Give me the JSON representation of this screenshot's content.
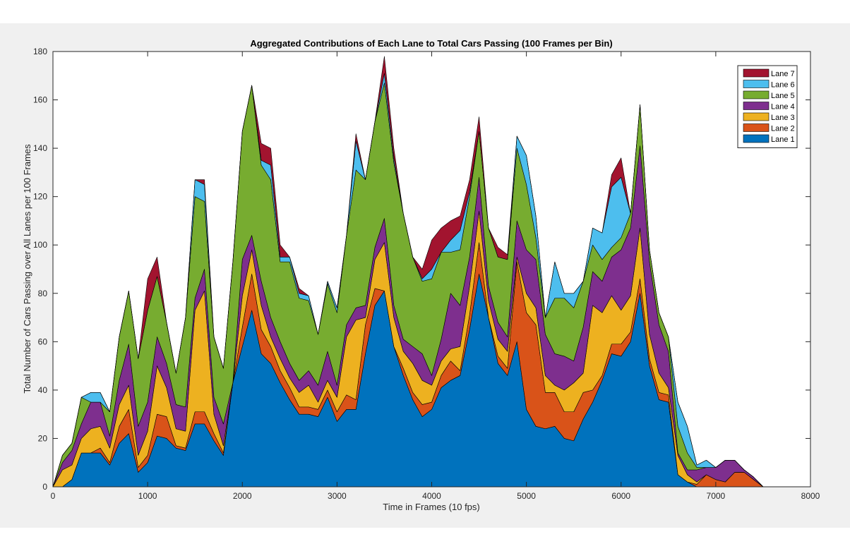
{
  "chart_data": {
    "type": "area",
    "title": "Aggregated Contributions of Each Lane to Total Cars Passing (100 Frames per Bin)",
    "xlabel": "Time in Frames (10 fps)",
    "ylabel": "Total Number of Cars Passing over All Lanes per 100 Frames",
    "xlim": [
      0,
      8000
    ],
    "ylim": [
      0,
      180
    ],
    "xticks": [
      0,
      1000,
      2000,
      3000,
      4000,
      5000,
      6000,
      7000,
      8000
    ],
    "yticks": [
      0,
      20,
      40,
      60,
      80,
      100,
      120,
      140,
      160,
      180
    ],
    "grid": false,
    "legend_position": "top-right",
    "x": [
      0,
      100,
      200,
      300,
      400,
      500,
      600,
      700,
      800,
      900,
      1000,
      1100,
      1200,
      1300,
      1400,
      1500,
      1600,
      1700,
      1800,
      1900,
      2000,
      2100,
      2200,
      2300,
      2400,
      2500,
      2600,
      2700,
      2800,
      2900,
      3000,
      3100,
      3200,
      3300,
      3400,
      3500,
      3600,
      3700,
      3800,
      3900,
      4000,
      4100,
      4200,
      4300,
      4400,
      4500,
      4600,
      4700,
      4800,
      4900,
      5000,
      5100,
      5200,
      5300,
      5400,
      5500,
      5600,
      5700,
      5800,
      5900,
      6000,
      6100,
      6200,
      6300,
      6400,
      6500,
      6600,
      6700,
      6800,
      6900,
      7000,
      7100,
      7200,
      7300,
      7400,
      7500,
      7600,
      7700,
      7800,
      7900,
      8000
    ],
    "series": [
      {
        "name": "Lane 1",
        "color": "#0072BD",
        "values": [
          0,
          0,
          3,
          14,
          14,
          14,
          9,
          18,
          22,
          6,
          10,
          21,
          20,
          16,
          15,
          26,
          26,
          19,
          13,
          43,
          58,
          73,
          55,
          51,
          43,
          36,
          30,
          30,
          29,
          37,
          27,
          32,
          32,
          55,
          75,
          81,
          58,
          46,
          36,
          29,
          32,
          41,
          44,
          46,
          65,
          88,
          70,
          51,
          46,
          60,
          32,
          25,
          24,
          25,
          20,
          19,
          28,
          35,
          44,
          55,
          54,
          60,
          80,
          50,
          36,
          35,
          5,
          2,
          0,
          0,
          0,
          0,
          0,
          0,
          0,
          0,
          0,
          0,
          0,
          0,
          0
        ]
      },
      {
        "name": "Lane 2",
        "color": "#D95319",
        "values": [
          0,
          0,
          0,
          0,
          0,
          2,
          1,
          7,
          10,
          2,
          3,
          9,
          9,
          1,
          1,
          5,
          5,
          3,
          1,
          0,
          8,
          15,
          10,
          7,
          5,
          5,
          3,
          3,
          3,
          3,
          4,
          6,
          4,
          12,
          7,
          0,
          0,
          3,
          3,
          5,
          3,
          5,
          8,
          2,
          6,
          13,
          0,
          3,
          3,
          33,
          40,
          42,
          15,
          14,
          11,
          12,
          11,
          5,
          2,
          4,
          5,
          4,
          6,
          3,
          3,
          3,
          0,
          0,
          1,
          5,
          3,
          2,
          6,
          6,
          3,
          0,
          0,
          0,
          0,
          0,
          0
        ]
      },
      {
        "name": "Lane 3",
        "color": "#EDB120",
        "values": [
          0,
          7,
          6,
          6,
          10,
          9,
          6,
          9,
          10,
          5,
          10,
          20,
          12,
          7,
          7,
          42,
          50,
          8,
          3,
          0,
          13,
          10,
          10,
          4,
          5,
          4,
          6,
          9,
          3,
          4,
          6,
          24,
          33,
          3,
          12,
          20,
          12,
          7,
          12,
          10,
          7,
          6,
          5,
          10,
          12,
          13,
          7,
          7,
          7,
          2,
          8,
          7,
          7,
          3,
          9,
          12,
          8,
          35,
          26,
          20,
          14,
          15,
          21,
          10,
          8,
          3,
          8,
          3,
          1,
          0,
          0,
          0,
          0,
          0,
          0,
          0,
          0,
          0,
          0,
          0,
          0
        ]
      },
      {
        "name": "Lane 4",
        "color": "#7E2F8E",
        "values": [
          0,
          3,
          6,
          6,
          11,
          10,
          5,
          10,
          17,
          12,
          12,
          12,
          10,
          10,
          10,
          5,
          9,
          7,
          9,
          0,
          15,
          6,
          10,
          8,
          7,
          6,
          5,
          6,
          7,
          12,
          5,
          5,
          5,
          5,
          5,
          10,
          5,
          5,
          7,
          11,
          4,
          9,
          23,
          17,
          12,
          14,
          6,
          7,
          6,
          15,
          18,
          20,
          17,
          13,
          14,
          9,
          19,
          14,
          13,
          16,
          25,
          28,
          34,
          30,
          20,
          15,
          1,
          2,
          5,
          3,
          5,
          9,
          5,
          1,
          1,
          0,
          0,
          0,
          0,
          0,
          0
        ]
      },
      {
        "name": "Lane 5",
        "color": "#77AC30",
        "values": [
          0,
          3,
          3,
          11,
          0,
          0,
          10,
          18,
          22,
          28,
          38,
          25,
          17,
          13,
          37,
          42,
          28,
          25,
          23,
          50,
          53,
          62,
          48,
          57,
          33,
          42,
          34,
          29,
          21,
          28,
          30,
          37,
          57,
          52,
          52,
          56,
          59,
          52,
          37,
          30,
          40,
          36,
          17,
          23,
          25,
          19,
          24,
          27,
          32,
          30,
          27,
          9,
          7,
          23,
          24,
          22,
          19,
          11,
          9,
          4,
          5,
          6,
          17,
          5,
          5,
          6,
          11,
          7,
          1,
          0,
          0,
          0,
          0,
          0,
          0,
          0,
          0,
          0,
          0,
          0,
          0
        ]
      },
      {
        "name": "Lane 6",
        "color": "#4DBEEE",
        "values": [
          0,
          0,
          0,
          0,
          4,
          4,
          0,
          0,
          0,
          0,
          0,
          0,
          0,
          0,
          0,
          7,
          7,
          0,
          0,
          0,
          0,
          0,
          2,
          6,
          2,
          2,
          2,
          2,
          0,
          1,
          2,
          0,
          12,
          0,
          0,
          4,
          2,
          0,
          0,
          1,
          4,
          0,
          5,
          8,
          2,
          0,
          0,
          0,
          0,
          5,
          12,
          9,
          0,
          15,
          2,
          6,
          0,
          7,
          11,
          25,
          25,
          0,
          0,
          0,
          0,
          0,
          10,
          11,
          1,
          3,
          0,
          0,
          0,
          0,
          0,
          0,
          0,
          0,
          0,
          0,
          0
        ]
      },
      {
        "name": "Lane 7",
        "color": "#A2142F",
        "values": [
          0,
          0,
          0,
          0,
          0,
          0,
          0,
          0,
          0,
          0,
          13,
          8,
          0,
          0,
          0,
          0,
          2,
          0,
          0,
          0,
          0,
          0,
          7,
          7,
          5,
          0,
          2,
          0,
          0,
          0,
          0,
          0,
          3,
          0,
          0,
          7,
          4,
          0,
          0,
          4,
          12,
          10,
          8,
          6,
          5,
          6,
          0,
          4,
          2,
          0,
          0,
          0,
          0,
          0,
          0,
          0,
          0,
          0,
          0,
          5,
          8,
          0,
          0,
          0,
          0,
          0,
          0,
          0,
          0,
          0,
          0,
          0,
          0,
          0,
          0,
          0,
          0,
          0,
          0,
          0,
          0
        ]
      }
    ]
  }
}
